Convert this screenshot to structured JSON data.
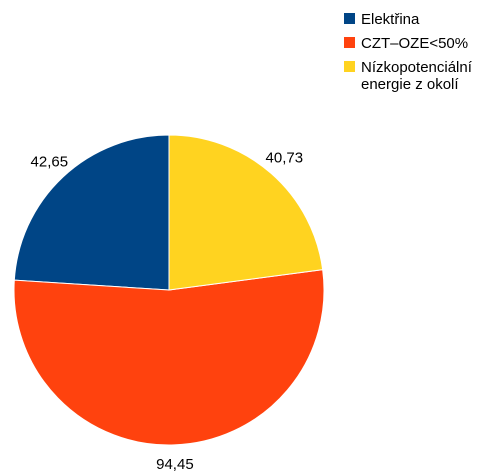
{
  "chart_data": {
    "type": "pie",
    "categories": [
      "Elektřina",
      "CZT–OZE<50%",
      "Nízkopotenciální energie z okolí"
    ],
    "values": [
      42.65,
      94.45,
      40.73
    ],
    "value_labels": [
      "42,65",
      "94,45",
      "40,73"
    ],
    "colors": [
      "#004586",
      "#ff420e",
      "#ffd320"
    ],
    "legend": {
      "position": "top-right",
      "entries": [
        {
          "lines": [
            "Elektřina"
          ]
        },
        {
          "lines": [
            "CZT–OZE<50%"
          ]
        },
        {
          "lines": [
            "Nízkopotenciální",
            "energie z okolí"
          ]
        }
      ]
    },
    "title": "",
    "start_angle": "12 o'clock",
    "direction": "counter-clockwise"
  }
}
